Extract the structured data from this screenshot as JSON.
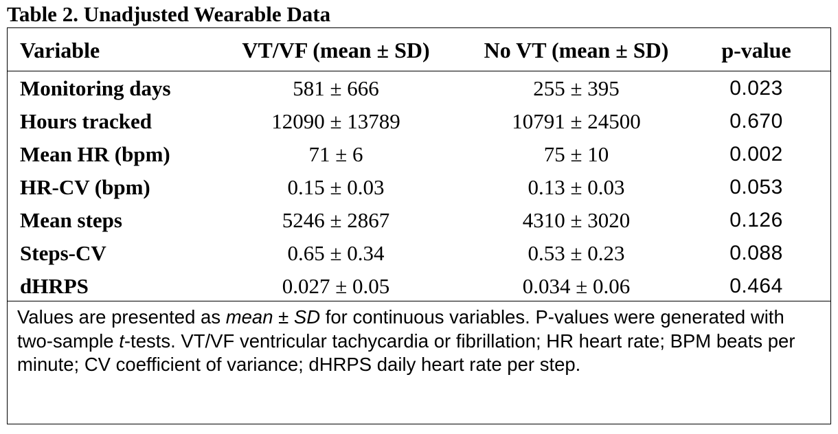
{
  "table": {
    "title": "Table 2. Unadjusted Wearable Data",
    "columns": [
      "Variable",
      "VT/VF (mean ± SD)",
      "No VT (mean ± SD)",
      "p-value"
    ],
    "rows": [
      {
        "variable": "Monitoring days",
        "vtvf": "581 ± 666",
        "novt": "255 ± 395",
        "p": "0.023"
      },
      {
        "variable": "Hours tracked",
        "vtvf": "12090 ± 13789",
        "novt": "10791 ± 24500",
        "p": "0.670"
      },
      {
        "variable": "Mean HR (bpm)",
        "vtvf": "71 ± 6",
        "novt": "75 ± 10",
        "p": "0.002"
      },
      {
        "variable": "HR-CV (bpm)",
        "vtvf": "0.15 ± 0.03",
        "novt": "0.13 ± 0.03",
        "p": "0.053"
      },
      {
        "variable": "Mean steps",
        "vtvf": "5246 ± 2867",
        "novt": "4310 ± 3020",
        "p": "0.126"
      },
      {
        "variable": "Steps-CV",
        "vtvf": "0.65 ± 0.34",
        "novt": "0.53 ± 0.23",
        "p": "0.088"
      },
      {
        "variable": "dHRPS",
        "vtvf": "0.027 ± 0.05",
        "novt": "0.034 ± 0.06",
        "p": "0.464"
      }
    ]
  },
  "footnote": {
    "part1": "Values are presented as ",
    "mean_sd": "mean ± SD",
    "part2": " for continuous variables. P-values were generated with two-sample ",
    "t": "t",
    "part3": "-tests. VT/VF ventricular tachycardia or fibrillation; HR heart rate; BPM beats per minute; CV coefficient of variance; dHRPS daily heart rate per step."
  }
}
